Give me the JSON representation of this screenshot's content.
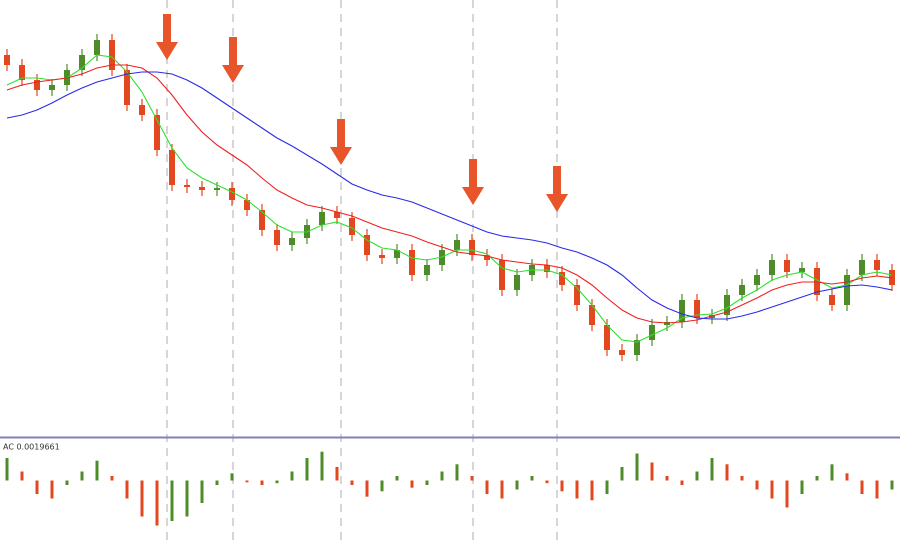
{
  "chart_data": {
    "type": "candlestick",
    "up_color": "#4e8c2a",
    "down_color": "#e3471f",
    "ylim": [
      0,
      440
    ],
    "open": [
      385,
      375,
      360,
      350,
      355,
      370,
      385,
      400,
      370,
      335,
      325,
      290,
      255,
      253,
      250,
      252,
      240,
      230,
      210,
      195,
      202,
      215,
      228,
      222,
      205,
      185,
      182,
      190,
      165,
      175,
      190,
      200,
      185,
      180,
      150,
      165,
      175,
      168,
      155,
      135,
      115,
      90,
      85,
      100,
      115,
      118,
      140,
      122,
      125,
      145,
      155,
      165,
      180,
      168,
      172,
      145,
      135,
      165,
      180,
      170
    ],
    "high": [
      391,
      381,
      366,
      361,
      376,
      391,
      406,
      406,
      376,
      341,
      331,
      296,
      261,
      259,
      258,
      258,
      246,
      236,
      216,
      208,
      221,
      234,
      234,
      228,
      211,
      191,
      196,
      196,
      181,
      196,
      206,
      206,
      191,
      186,
      171,
      181,
      181,
      174,
      161,
      141,
      121,
      96,
      106,
      121,
      124,
      146,
      146,
      131,
      151,
      161,
      171,
      186,
      186,
      178,
      178,
      151,
      171,
      186,
      186,
      176
    ],
    "low": [
      369,
      354,
      344,
      344,
      349,
      364,
      379,
      364,
      329,
      319,
      284,
      249,
      247,
      244,
      244,
      234,
      224,
      204,
      189,
      189,
      196,
      209,
      216,
      199,
      179,
      176,
      176,
      159,
      159,
      169,
      184,
      179,
      174,
      144,
      144,
      159,
      162,
      149,
      129,
      109,
      84,
      79,
      79,
      94,
      109,
      112,
      116,
      116,
      119,
      139,
      149,
      159,
      162,
      162,
      139,
      129,
      129,
      159,
      164,
      149
    ],
    "close": [
      375,
      360,
      350,
      355,
      370,
      385,
      400,
      370,
      335,
      325,
      290,
      255,
      253,
      250,
      252,
      240,
      230,
      210,
      195,
      202,
      215,
      228,
      222,
      205,
      185,
      182,
      190,
      165,
      175,
      190,
      200,
      185,
      180,
      150,
      165,
      175,
      168,
      155,
      135,
      115,
      90,
      85,
      100,
      115,
      118,
      140,
      122,
      125,
      145,
      155,
      165,
      180,
      168,
      172,
      145,
      135,
      165,
      180,
      170,
      155
    ],
    "lines": [
      {
        "color": "#2ee02e",
        "values": [
          355,
          362,
          362,
          360,
          362,
          372,
          385,
          383,
          368,
          348,
          320,
          292,
          272,
          262,
          255,
          248,
          240,
          228,
          215,
          208,
          208,
          215,
          218,
          212,
          200,
          192,
          190,
          182,
          180,
          183,
          190,
          190,
          186,
          172,
          168,
          170,
          170,
          165,
          152,
          135,
          115,
          100,
          98,
          105,
          112,
          122,
          125,
          126,
          132,
          142,
          150,
          160,
          165,
          168,
          160,
          152,
          155,
          165,
          168,
          165
        ]
      },
      {
        "color": "#f02020",
        "values": [
          350,
          355,
          358,
          360,
          362,
          366,
          372,
          375,
          375,
          372,
          362,
          345,
          325,
          308,
          295,
          285,
          275,
          262,
          250,
          242,
          235,
          232,
          228,
          224,
          218,
          212,
          208,
          204,
          198,
          193,
          188,
          186,
          184,
          180,
          178,
          176,
          175,
          172,
          165,
          155,
          142,
          130,
          122,
          118,
          117,
          118,
          120,
          124,
          128,
          135,
          142,
          150,
          155,
          158,
          158,
          156,
          158,
          162,
          164,
          162
        ]
      },
      {
        "color": "#2a2ae8",
        "values": [
          322,
          325,
          330,
          337,
          345,
          352,
          358,
          362,
          366,
          368,
          368,
          366,
          360,
          352,
          342,
          332,
          322,
          312,
          302,
          294,
          285,
          276,
          266,
          256,
          250,
          245,
          242,
          238,
          232,
          226,
          220,
          214,
          208,
          204,
          202,
          200,
          197,
          192,
          188,
          182,
          175,
          165,
          152,
          140,
          132,
          126,
          122,
          121,
          121,
          124,
          128,
          133,
          138,
          143,
          148,
          151,
          154,
          155,
          153,
          150
        ]
      }
    ],
    "indicator": {
      "label": "AC 0.0019661",
      "ylim": [
        -55,
        45
      ],
      "values": [
        25,
        10,
        -15,
        -20,
        -5,
        10,
        22,
        5,
        -20,
        -40,
        -50,
        -45,
        -40,
        -25,
        -5,
        8,
        -2,
        -5,
        -3,
        10,
        25,
        32,
        15,
        -5,
        -18,
        -12,
        5,
        -8,
        -5,
        10,
        18,
        5,
        -15,
        -20,
        -10,
        5,
        -3,
        -12,
        -20,
        -22,
        -15,
        15,
        30,
        20,
        5,
        -5,
        10,
        25,
        18,
        5,
        -10,
        -20,
        -30,
        -15,
        5,
        18,
        8,
        -15,
        -20,
        -10
      ]
    }
  }
}
